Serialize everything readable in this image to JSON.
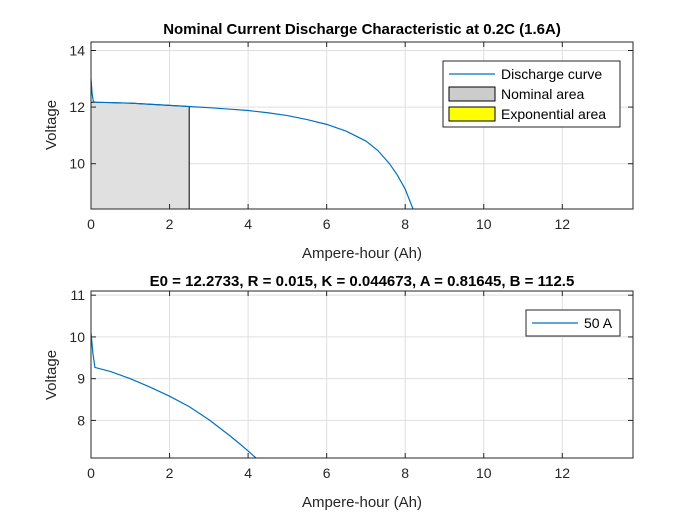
{
  "chart_data": [
    {
      "type": "line",
      "title": "Nominal Current Discharge Characteristic at 0.2C (1.6A)",
      "xlabel": "Ampere-hour (Ah)",
      "ylabel": "Voltage",
      "xlim": [
        0,
        13.8
      ],
      "ylim": [
        8.4,
        14.3
      ],
      "xticks": [
        0,
        2,
        4,
        6,
        8,
        10,
        12
      ],
      "yticks": [
        10,
        12,
        14
      ],
      "grid": true,
      "legend_position": "top-right",
      "series": [
        {
          "name": "Discharge curve",
          "color": "#0072BD",
          "x": [
            0,
            0.03,
            0.06,
            0.1,
            0.5,
            1.0,
            1.5,
            2.0,
            2.5,
            3.0,
            3.5,
            4.0,
            4.5,
            5.0,
            5.5,
            6.0,
            6.5,
            7.0,
            7.3,
            7.6,
            7.8,
            8.0,
            8.1,
            8.2
          ],
          "y": [
            13.0,
            12.45,
            12.2,
            12.17,
            12.16,
            12.14,
            12.1,
            12.06,
            12.02,
            11.98,
            11.93,
            11.88,
            11.8,
            11.7,
            11.56,
            11.39,
            11.15,
            10.8,
            10.47,
            10.0,
            9.6,
            9.1,
            8.75,
            8.4
          ]
        }
      ],
      "areas": [
        {
          "name": "Nominal area",
          "fill": "#e0e0e0",
          "legend_fill": "#cccccc",
          "x": [
            0,
            0.1,
            0.5,
            1.0,
            1.5,
            2.0,
            2.5
          ],
          "y": [
            12.17,
            12.17,
            12.16,
            12.14,
            12.1,
            12.06,
            12.02
          ]
        },
        {
          "name": "Exponential area",
          "fill": "#ffff00",
          "legend_fill": "#ffff00",
          "x": [],
          "y": []
        }
      ]
    },
    {
      "type": "line",
      "title": "E0 = 12.2733, R = 0.015, K = 0.044673, A = 0.81645, B = 112.5",
      "xlabel": "Ampere-hour (Ah)",
      "ylabel": "Voltage",
      "xlim": [
        0,
        13.8
      ],
      "ylim": [
        7.1,
        11.1
      ],
      "xticks": [
        0,
        2,
        4,
        6,
        8,
        10,
        12
      ],
      "yticks": [
        8,
        9,
        10,
        11
      ],
      "grid": true,
      "legend_position": "top-right",
      "series": [
        {
          "name": "50 A",
          "color": "#0072BD",
          "x": [
            0,
            0.05,
            0.1,
            0.5,
            1.0,
            1.5,
            2.0,
            2.5,
            3.0,
            3.5,
            3.8,
            4.0,
            4.2
          ],
          "y": [
            10.1,
            9.6,
            9.27,
            9.17,
            9.0,
            8.8,
            8.58,
            8.33,
            8.02,
            7.66,
            7.43,
            7.27,
            7.1
          ]
        }
      ]
    }
  ]
}
